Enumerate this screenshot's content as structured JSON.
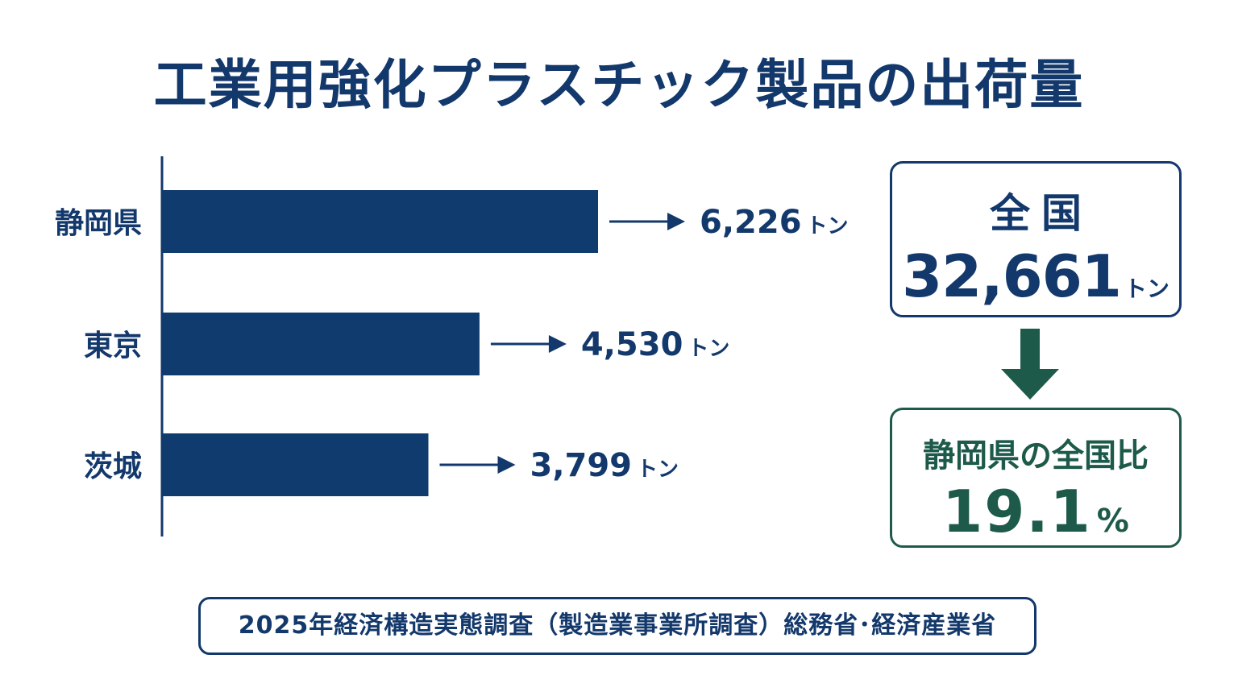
{
  "title": "工業用強化プラスチック製品の出荷量",
  "colors": {
    "primary": "#13386b",
    "bar": "#103b6e",
    "accent_green": "#1d5a4a",
    "background": "#ffffff"
  },
  "chart_data": {
    "type": "bar",
    "orientation": "horizontal",
    "categories": [
      "静岡県",
      "東京",
      "茨城"
    ],
    "values": [
      6226,
      4530,
      3799
    ],
    "value_labels": [
      "6,226",
      "4,530",
      "3,799"
    ],
    "unit": "トン",
    "title": "工業用強化プラスチック製品の出荷量",
    "xlabel": "",
    "ylabel": "",
    "grid": false,
    "legend": "none"
  },
  "summary": {
    "total_label": "全国",
    "total_value": "32,661",
    "total_unit": "トン",
    "arrow_icon": "down-arrow-icon",
    "share_label": "静岡県の全国比",
    "share_value": "19.1",
    "share_unit": "%"
  },
  "source": "2025年経済構造実態調査（製造業事業所調査）総務省･経済産業省"
}
